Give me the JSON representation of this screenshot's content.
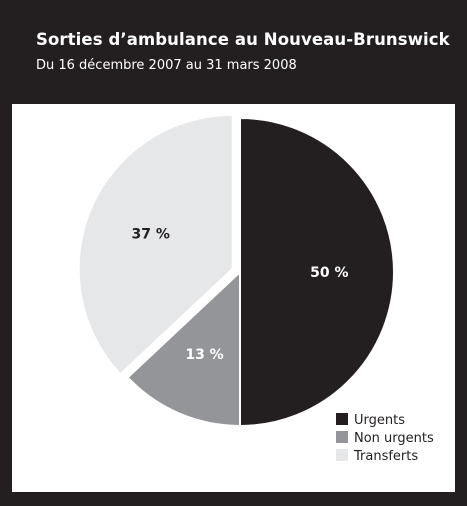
{
  "header": {
    "title": "Sorties d’ambulance au Nouveau-Brunswick",
    "subtitle": "Du 16 décembre 2007 au 31 mars 2008"
  },
  "chart_data": {
    "type": "pie",
    "title": "Sorties d’ambulance au Nouveau-Brunswick",
    "subtitle": "Du 16 décembre 2007 au 31 mars 2008",
    "legend_position": "bottom-right",
    "slices": [
      {
        "name": "Urgents",
        "value": 50,
        "label": "50 %",
        "color": "#231f20",
        "label_color": "#ffffff"
      },
      {
        "name": "Non urgents",
        "value": 13,
        "label": "13 %",
        "color": "#939598",
        "label_color": "#ffffff"
      },
      {
        "name": "Transferts",
        "value": 37,
        "label": "37 %",
        "color": "#e6e7e8",
        "label_color": "#231f20"
      }
    ],
    "exploded_slice": "Transferts"
  }
}
